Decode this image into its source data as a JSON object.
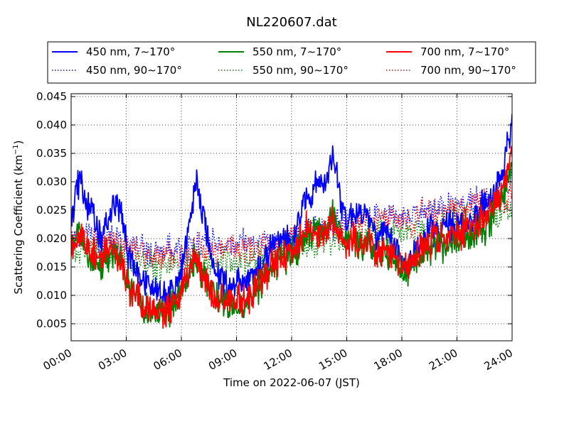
{
  "chart_data": {
    "type": "line",
    "title": "NL220607.dat",
    "xlabel": "Time on 2022-06-07 (JST)",
    "ylabel_main": "Scattering Coefficient (km",
    "ylabel_sup": "−1",
    "ylabel_close": ")",
    "xlim": [
      0,
      24
    ],
    "ylim": [
      0.002,
      0.0455
    ],
    "x_ticks": [
      0,
      3,
      6,
      9,
      12,
      15,
      18,
      21,
      24
    ],
    "x_tick_labels": [
      "00:00",
      "03:00",
      "06:00",
      "09:00",
      "12:00",
      "15:00",
      "18:00",
      "21:00",
      "24:00"
    ],
    "y_ticks": [
      0.005,
      0.01,
      0.015,
      0.02,
      0.025,
      0.03,
      0.035,
      0.04,
      0.045
    ],
    "y_tick_labels": [
      "0.005",
      "0.010",
      "0.015",
      "0.020",
      "0.025",
      "0.030",
      "0.035",
      "0.040",
      "0.045"
    ],
    "grid": true,
    "legend_placement": "top-outside",
    "series": [
      {
        "name": "450 nm, 7∼170°",
        "color": "#0000ff",
        "style": "solid",
        "x": [
          0,
          0.25,
          0.5,
          0.75,
          1,
          1.25,
          1.5,
          1.75,
          2,
          2.25,
          2.5,
          2.75,
          3,
          3.25,
          3.5,
          3.75,
          4,
          4.25,
          4.5,
          4.75,
          5,
          5.25,
          5.5,
          5.75,
          6,
          6.25,
          6.5,
          6.75,
          7,
          7.25,
          7.5,
          7.75,
          8,
          8.25,
          8.5,
          8.75,
          9,
          9.25,
          9.5,
          9.75,
          10,
          10.25,
          10.5,
          10.75,
          11,
          11.25,
          11.5,
          11.75,
          12,
          12.25,
          12.5,
          12.75,
          13,
          13.25,
          13.5,
          13.75,
          14,
          14.25,
          14.5,
          14.75,
          15,
          15.25,
          15.5,
          15.75,
          16,
          16.25,
          16.5,
          16.75,
          17,
          17.25,
          17.5,
          17.75,
          18,
          18.25,
          18.5,
          18.75,
          19,
          19.25,
          19.5,
          19.75,
          20,
          20.25,
          20.5,
          20.75,
          21,
          21.25,
          21.5,
          21.75,
          22,
          22.25,
          22.5,
          22.75,
          23,
          23.25,
          23.5,
          23.75,
          24
        ],
        "y": [
          0.022,
          0.029,
          0.03,
          0.027,
          0.026,
          0.023,
          0.02,
          0.021,
          0.023,
          0.025,
          0.027,
          0.024,
          0.019,
          0.016,
          0.014,
          0.013,
          0.013,
          0.012,
          0.011,
          0.011,
          0.01,
          0.01,
          0.011,
          0.012,
          0.014,
          0.018,
          0.024,
          0.031,
          0.026,
          0.023,
          0.019,
          0.016,
          0.014,
          0.013,
          0.012,
          0.012,
          0.012,
          0.012,
          0.013,
          0.013,
          0.014,
          0.015,
          0.016,
          0.018,
          0.019,
          0.019,
          0.02,
          0.019,
          0.02,
          0.022,
          0.025,
          0.027,
          0.028,
          0.029,
          0.03,
          0.029,
          0.031,
          0.034,
          0.031,
          0.026,
          0.023,
          0.024,
          0.025,
          0.024,
          0.025,
          0.023,
          0.021,
          0.02,
          0.021,
          0.02,
          0.019,
          0.018,
          0.016,
          0.015,
          0.016,
          0.018,
          0.019,
          0.02,
          0.021,
          0.022,
          0.021,
          0.022,
          0.022,
          0.022,
          0.022,
          0.023,
          0.023,
          0.023,
          0.024,
          0.025,
          0.026,
          0.027,
          0.027,
          0.03,
          0.032,
          0.036,
          0.041
        ]
      },
      {
        "name": "450 nm, 90∼170°",
        "color": "#0000ff",
        "style": "dotted",
        "x": [
          0,
          0.5,
          1,
          1.5,
          2,
          2.5,
          3,
          3.5,
          4,
          4.5,
          5,
          5.5,
          6,
          6.5,
          7,
          7.5,
          8,
          8.5,
          9,
          9.5,
          10,
          10.5,
          11,
          11.5,
          12,
          12.5,
          13,
          13.5,
          14,
          14.5,
          15,
          15.5,
          16,
          16.5,
          17,
          17.5,
          18,
          18.5,
          19,
          19.5,
          20,
          20.5,
          21,
          21.5,
          22,
          22.5,
          23,
          23.5,
          24
        ],
        "y": [
          0.02,
          0.021,
          0.021,
          0.02,
          0.02,
          0.02,
          0.019,
          0.019,
          0.018,
          0.018,
          0.018,
          0.018,
          0.018,
          0.018,
          0.019,
          0.019,
          0.019,
          0.019,
          0.019,
          0.019,
          0.019,
          0.02,
          0.02,
          0.02,
          0.021,
          0.021,
          0.022,
          0.022,
          0.022,
          0.023,
          0.023,
          0.023,
          0.024,
          0.024,
          0.024,
          0.024,
          0.024,
          0.024,
          0.025,
          0.025,
          0.025,
          0.026,
          0.026,
          0.026,
          0.027,
          0.027,
          0.027,
          0.028,
          0.029
        ]
      },
      {
        "name": "550 nm, 7∼170°",
        "color": "#008000",
        "style": "solid",
        "x": [
          0,
          0.25,
          0.5,
          0.75,
          1,
          1.25,
          1.5,
          1.75,
          2,
          2.25,
          2.5,
          2.75,
          3,
          3.25,
          3.5,
          3.75,
          4,
          4.25,
          4.5,
          4.75,
          5,
          5.25,
          5.5,
          5.75,
          6,
          6.25,
          6.5,
          6.75,
          7,
          7.25,
          7.5,
          7.75,
          8,
          8.25,
          8.5,
          8.75,
          9,
          9.25,
          9.5,
          9.75,
          10,
          10.25,
          10.5,
          10.75,
          11,
          11.25,
          11.5,
          11.75,
          12,
          12.25,
          12.5,
          12.75,
          13,
          13.25,
          13.5,
          13.75,
          14,
          14.25,
          14.5,
          14.75,
          15,
          15.25,
          15.5,
          15.75,
          16,
          16.25,
          16.5,
          16.75,
          17,
          17.25,
          17.5,
          17.75,
          18,
          18.25,
          18.5,
          18.75,
          19,
          19.25,
          19.5,
          19.75,
          20,
          20.25,
          20.5,
          20.75,
          21,
          21.25,
          21.5,
          21.75,
          22,
          22.25,
          22.5,
          22.75,
          23,
          23.25,
          23.5,
          23.75,
          24
        ],
        "y": [
          0.017,
          0.021,
          0.022,
          0.019,
          0.017,
          0.016,
          0.015,
          0.016,
          0.017,
          0.018,
          0.017,
          0.016,
          0.013,
          0.011,
          0.01,
          0.009,
          0.008,
          0.007,
          0.007,
          0.007,
          0.007,
          0.007,
          0.008,
          0.009,
          0.01,
          0.012,
          0.014,
          0.016,
          0.015,
          0.013,
          0.012,
          0.01,
          0.009,
          0.009,
          0.008,
          0.008,
          0.008,
          0.008,
          0.009,
          0.01,
          0.011,
          0.012,
          0.013,
          0.014,
          0.015,
          0.016,
          0.016,
          0.017,
          0.017,
          0.018,
          0.019,
          0.021,
          0.021,
          0.022,
          0.022,
          0.022,
          0.022,
          0.024,
          0.022,
          0.02,
          0.019,
          0.02,
          0.02,
          0.019,
          0.019,
          0.019,
          0.018,
          0.017,
          0.018,
          0.017,
          0.017,
          0.016,
          0.014,
          0.014,
          0.015,
          0.016,
          0.017,
          0.018,
          0.018,
          0.019,
          0.019,
          0.019,
          0.019,
          0.02,
          0.02,
          0.02,
          0.02,
          0.021,
          0.021,
          0.022,
          0.022,
          0.023,
          0.024,
          0.026,
          0.027,
          0.03,
          0.033
        ]
      },
      {
        "name": "550 nm, 90∼170°",
        "color": "#008000",
        "style": "dotted",
        "x": [
          0,
          0.5,
          1,
          1.5,
          2,
          2.5,
          3,
          3.5,
          4,
          4.5,
          5,
          5.5,
          6,
          6.5,
          7,
          7.5,
          8,
          8.5,
          9,
          9.5,
          10,
          10.5,
          11,
          11.5,
          12,
          12.5,
          13,
          13.5,
          14,
          14.5,
          15,
          15.5,
          16,
          16.5,
          17,
          17.5,
          18,
          18.5,
          19,
          19.5,
          20,
          20.5,
          21,
          21.5,
          22,
          22.5,
          23,
          23.5,
          24
        ],
        "y": [
          0.017,
          0.018,
          0.018,
          0.018,
          0.017,
          0.017,
          0.017,
          0.016,
          0.016,
          0.015,
          0.015,
          0.015,
          0.015,
          0.016,
          0.016,
          0.016,
          0.016,
          0.016,
          0.016,
          0.016,
          0.017,
          0.017,
          0.017,
          0.018,
          0.018,
          0.019,
          0.019,
          0.019,
          0.02,
          0.02,
          0.02,
          0.02,
          0.021,
          0.021,
          0.021,
          0.021,
          0.021,
          0.021,
          0.022,
          0.022,
          0.022,
          0.023,
          0.023,
          0.023,
          0.024,
          0.024,
          0.024,
          0.025,
          0.026
        ]
      },
      {
        "name": "700 nm, 7∼170°",
        "color": "#ff0000",
        "style": "solid",
        "x": [
          0,
          0.25,
          0.5,
          0.75,
          1,
          1.25,
          1.5,
          1.75,
          2,
          2.25,
          2.5,
          2.75,
          3,
          3.25,
          3.5,
          3.75,
          4,
          4.25,
          4.5,
          4.75,
          5,
          5.25,
          5.5,
          5.75,
          6,
          6.25,
          6.5,
          6.75,
          7,
          7.25,
          7.5,
          7.75,
          8,
          8.25,
          8.5,
          8.75,
          9,
          9.25,
          9.5,
          9.75,
          10,
          10.25,
          10.5,
          10.75,
          11,
          11.25,
          11.5,
          11.75,
          12,
          12.25,
          12.5,
          12.75,
          13,
          13.25,
          13.5,
          13.75,
          14,
          14.25,
          14.5,
          14.75,
          15,
          15.25,
          15.5,
          15.75,
          16,
          16.25,
          16.5,
          16.75,
          17,
          17.25,
          17.5,
          17.75,
          18,
          18.25,
          18.5,
          18.75,
          19,
          19.25,
          19.5,
          19.75,
          20,
          20.25,
          20.5,
          20.75,
          21,
          21.25,
          21.5,
          21.75,
          22,
          22.25,
          22.5,
          22.75,
          23,
          23.25,
          23.5,
          23.75,
          24
        ],
        "y": [
          0.018,
          0.02,
          0.021,
          0.019,
          0.018,
          0.017,
          0.016,
          0.017,
          0.018,
          0.018,
          0.017,
          0.016,
          0.013,
          0.011,
          0.01,
          0.009,
          0.008,
          0.008,
          0.007,
          0.007,
          0.007,
          0.008,
          0.008,
          0.009,
          0.011,
          0.013,
          0.015,
          0.016,
          0.015,
          0.013,
          0.012,
          0.01,
          0.009,
          0.009,
          0.009,
          0.008,
          0.009,
          0.009,
          0.009,
          0.01,
          0.011,
          0.013,
          0.013,
          0.015,
          0.016,
          0.016,
          0.017,
          0.017,
          0.018,
          0.019,
          0.02,
          0.022,
          0.022,
          0.021,
          0.021,
          0.021,
          0.022,
          0.023,
          0.021,
          0.02,
          0.019,
          0.02,
          0.02,
          0.019,
          0.019,
          0.019,
          0.018,
          0.017,
          0.018,
          0.018,
          0.018,
          0.016,
          0.015,
          0.015,
          0.016,
          0.017,
          0.018,
          0.019,
          0.019,
          0.02,
          0.02,
          0.02,
          0.02,
          0.021,
          0.021,
          0.021,
          0.022,
          0.022,
          0.022,
          0.023,
          0.024,
          0.025,
          0.026,
          0.027,
          0.028,
          0.031,
          0.034
        ]
      },
      {
        "name": "700 nm, 90∼170°",
        "color": "#ff0000",
        "style": "dotted",
        "x": [
          0,
          0.5,
          1,
          1.5,
          2,
          2.5,
          3,
          3.5,
          4,
          4.5,
          5,
          5.5,
          6,
          6.5,
          7,
          7.5,
          8,
          8.5,
          9,
          9.5,
          10,
          10.5,
          11,
          11.5,
          12,
          12.5,
          13,
          13.5,
          14,
          14.5,
          15,
          15.5,
          16,
          16.5,
          17,
          17.5,
          18,
          18.5,
          19,
          19.5,
          20,
          20.5,
          21,
          21.5,
          22,
          22.5,
          23,
          23.5,
          24
        ],
        "y": [
          0.019,
          0.02,
          0.02,
          0.019,
          0.019,
          0.019,
          0.018,
          0.018,
          0.017,
          0.017,
          0.017,
          0.017,
          0.017,
          0.017,
          0.018,
          0.018,
          0.018,
          0.018,
          0.018,
          0.018,
          0.018,
          0.019,
          0.019,
          0.019,
          0.02,
          0.02,
          0.021,
          0.021,
          0.021,
          0.022,
          0.022,
          0.022,
          0.023,
          0.023,
          0.023,
          0.023,
          0.023,
          0.023,
          0.024,
          0.024,
          0.024,
          0.025,
          0.025,
          0.025,
          0.026,
          0.026,
          0.026,
          0.027,
          0.028
        ]
      }
    ]
  }
}
